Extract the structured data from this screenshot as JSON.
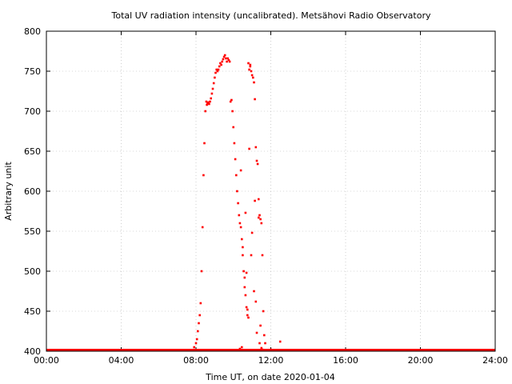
{
  "chart_data": {
    "type": "scatter",
    "title": "Total UV radiation intensity (uncalibrated). Metsähovi Radio Observatory",
    "xlabel": "Time UT, on date 2020-01-04",
    "ylabel": "Arbitrary unit",
    "xlim": [
      0,
      24
    ],
    "ylim": [
      400,
      800
    ],
    "x_ticks": [
      {
        "value": 0,
        "label": "00:00"
      },
      {
        "value": 4,
        "label": "04:00"
      },
      {
        "value": 8,
        "label": "08:00"
      },
      {
        "value": 12,
        "label": "12:00"
      },
      {
        "value": 16,
        "label": "16:00"
      },
      {
        "value": 20,
        "label": "20:00"
      },
      {
        "value": 24,
        "label": "24:00"
      }
    ],
    "y_ticks": [
      400,
      450,
      500,
      550,
      600,
      650,
      700,
      750,
      800
    ],
    "grid": true,
    "colors": {
      "points": "#ff0000",
      "grid": "#b0b0b0"
    },
    "series": [
      {
        "x": [
          7.9,
          8.0,
          8.05,
          8.1,
          8.15,
          8.2,
          8.25,
          8.3,
          8.35,
          8.4,
          8.45,
          8.5,
          8.55,
          8.58,
          8.62,
          8.66,
          8.7,
          8.75,
          8.8,
          8.85,
          8.9,
          8.95,
          9.0,
          9.05,
          9.1,
          9.15,
          9.2,
          9.25,
          9.3,
          9.35,
          9.4,
          9.45,
          9.5,
          9.55,
          9.6,
          9.65,
          9.7,
          9.75,
          9.8,
          9.85,
          9.9,
          9.95,
          10.0,
          10.05,
          10.1,
          10.15,
          10.2,
          10.25,
          10.3,
          10.35,
          10.4,
          10.45,
          10.5,
          10.55,
          10.6,
          10.65,
          10.7,
          10.75,
          10.8,
          10.85,
          10.9,
          10.95,
          11.0,
          11.05,
          11.1,
          11.15,
          11.2,
          11.25,
          11.3,
          11.35,
          11.4,
          11.45,
          11.5,
          11.55,
          11.6,
          11.65,
          11.7,
          12.0,
          12.5,
          10.35,
          10.45,
          10.6,
          10.7,
          10.75,
          10.8,
          10.95,
          11.1,
          11.25,
          11.4,
          11.5,
          10.4,
          10.65,
          10.85,
          11.0,
          11.15,
          11.35,
          11.55,
          10.5,
          10.9,
          11.2,
          11.45
        ],
        "y": [
          405,
          410,
          415,
          425,
          435,
          445,
          460,
          500,
          555,
          620,
          660,
          700,
          712,
          708,
          710,
          711,
          709,
          712,
          716,
          722,
          728,
          735,
          742,
          748,
          752,
          750,
          752,
          756,
          760,
          758,
          762,
          765,
          768,
          770,
          766,
          762,
          766,
          764,
          762,
          712,
          714,
          700,
          680,
          660,
          640,
          620,
          600,
          585,
          570,
          560,
          555,
          540,
          520,
          500,
          480,
          470,
          455,
          445,
          760,
          752,
          756,
          750,
          745,
          742,
          736,
          715,
          655,
          638,
          634,
          590,
          570,
          565,
          560,
          520,
          450,
          420,
          410,
          402,
          412,
          403,
          405,
          492,
          498,
          452,
          442,
          520,
          475,
          423,
          410,
          404,
          626,
          573,
          653,
          548,
          588,
          567,
          402,
          530,
          758,
          462,
          432
        ]
      }
    ]
  }
}
